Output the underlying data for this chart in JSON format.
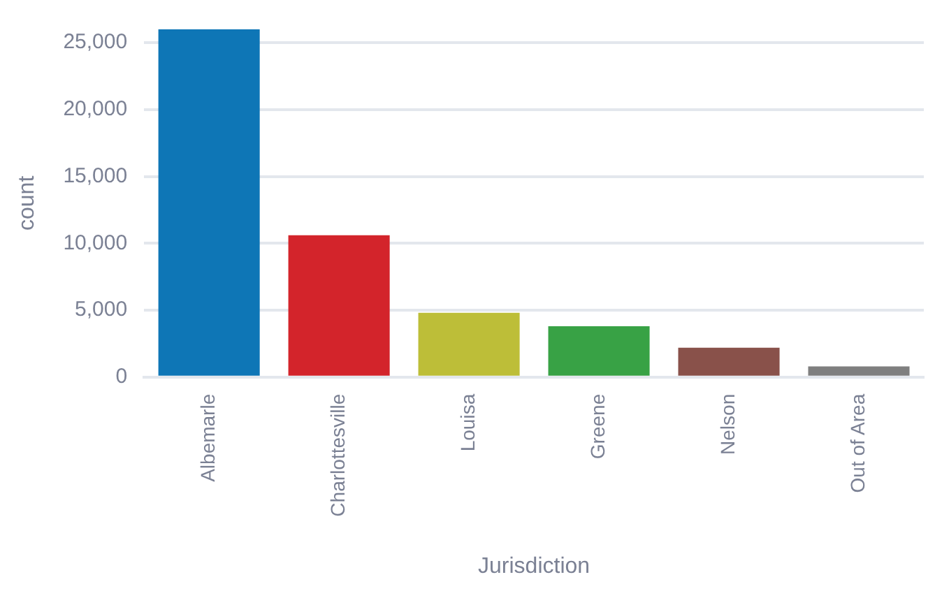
{
  "chart_data": {
    "type": "bar",
    "xlabel": "Jurisdiction",
    "ylabel": "count",
    "categories": [
      "Albemarle",
      "Charlottesville",
      "Louisa",
      "Greene",
      "Nelson",
      "Out of Area"
    ],
    "values": [
      26000,
      10600,
      4800,
      3800,
      2200,
      800
    ],
    "colors": [
      "#0e76b6",
      "#d3242b",
      "#bdbe38",
      "#38a245",
      "#89514a",
      "#7f7f7f"
    ],
    "ylim": [
      0,
      26000
    ],
    "yticks": [
      0,
      {
        "value": 5000,
        "label": "5,000"
      },
      {
        "value": 10000,
        "label": "10,000"
      },
      {
        "value": 15000,
        "label": "15,000"
      },
      {
        "value": 20000,
        "label": "20,000"
      },
      {
        "value": 25000,
        "label": "25,000"
      }
    ],
    "grid": "y",
    "legend": false
  }
}
